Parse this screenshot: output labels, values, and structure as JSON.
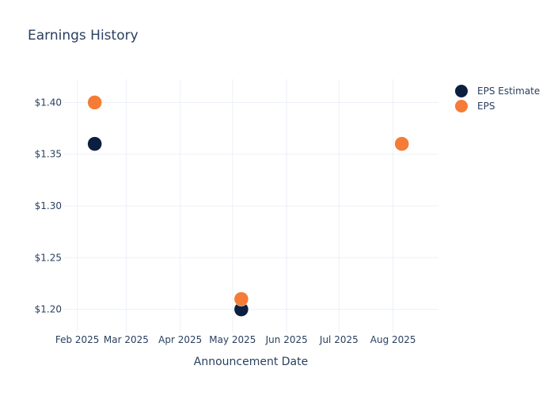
{
  "chart_data": {
    "type": "scatter",
    "title": "Earnings History",
    "xlabel": "Announcement Date",
    "ylabel": "",
    "x_ticks": [
      {
        "date": "2025-02-01",
        "label": "Feb 2025"
      },
      {
        "date": "2025-03-01",
        "label": "Mar 2025"
      },
      {
        "date": "2025-04-01",
        "label": "Apr 2025"
      },
      {
        "date": "2025-05-01",
        "label": "May 2025"
      },
      {
        "date": "2025-06-01",
        "label": "Jun 2025"
      },
      {
        "date": "2025-07-01",
        "label": "Jul 2025"
      },
      {
        "date": "2025-08-01",
        "label": "Aug 2025"
      }
    ],
    "y_ticks": [
      {
        "value": 1.2,
        "label": "$1.20"
      },
      {
        "value": 1.25,
        "label": "$1.25"
      },
      {
        "value": 1.3,
        "label": "$1.30"
      },
      {
        "value": 1.35,
        "label": "$1.35"
      },
      {
        "value": 1.4,
        "label": "$1.40"
      }
    ],
    "xlim": [
      "2025-01-24",
      "2025-08-27"
    ],
    "ylim": [
      1.1775,
      1.4225
    ],
    "grid": true,
    "legend_position": "top-right",
    "series": [
      {
        "name": "EPS Estimate",
        "color": "#0b1f41",
        "points": [
          {
            "date": "2025-02-11",
            "value": 1.36
          },
          {
            "date": "2025-05-06",
            "value": 1.2
          },
          {
            "date": "2025-08-06",
            "value": 1.36
          }
        ]
      },
      {
        "name": "EPS",
        "color": "#f47c36",
        "points": [
          {
            "date": "2025-02-11",
            "value": 1.4
          },
          {
            "date": "2025-05-06",
            "value": 1.21
          },
          {
            "date": "2025-08-06",
            "value": 1.36
          }
        ]
      }
    ]
  }
}
